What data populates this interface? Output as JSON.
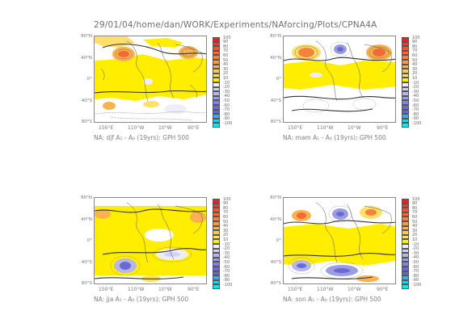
{
  "header": "29/01/04/home/dan/WORK/Experiments/NAforcing/Plots/CPNA4A",
  "lat_labels": [
    "80°N",
    "40°N",
    "0°",
    "40°S",
    "80°S"
  ],
  "lon_labels": [
    "150°E",
    "110°W",
    "10°W",
    "90°E"
  ],
  "colorbar": {
    "levels": [
      "100",
      "90",
      "80",
      "70",
      "60",
      "50",
      "40",
      "30",
      "20",
      "10",
      "-10",
      "-20",
      "-30",
      "-40",
      "-50",
      "-60",
      "-70",
      "-80",
      "-90",
      "-100"
    ],
    "colors": [
      "#e8202a",
      "#ee3c2d",
      "#f25430",
      "#f46a34",
      "#f5823b",
      "#f79945",
      "#f9b24f",
      "#fbc85c",
      "#fde06b",
      "#ffee00",
      "#eeeefa",
      "#d2d2f2",
      "#b6b6ea",
      "#9c9ce2",
      "#8282da",
      "#6a6ad2",
      "#5a6ad6",
      "#46a4e6",
      "#2cc8ee",
      "#00e8f2"
    ]
  },
  "panels": [
    {
      "id": "djf",
      "season": "djf",
      "caption": "NA: djf A₁ - A₀ (19yrs): GPH 500"
    },
    {
      "id": "mam",
      "season": "mam",
      "caption": "NA: mam A₁ - A₀ (19yrs): GPH 500"
    },
    {
      "id": "jja",
      "season": "jja",
      "caption": "NA: jja A₁ - A₀ (19yrs): GPH 500"
    },
    {
      "id": "son",
      "season": "son",
      "caption": "NA: son A₁ - A₀ (19yrs): GPH 500"
    }
  ]
}
